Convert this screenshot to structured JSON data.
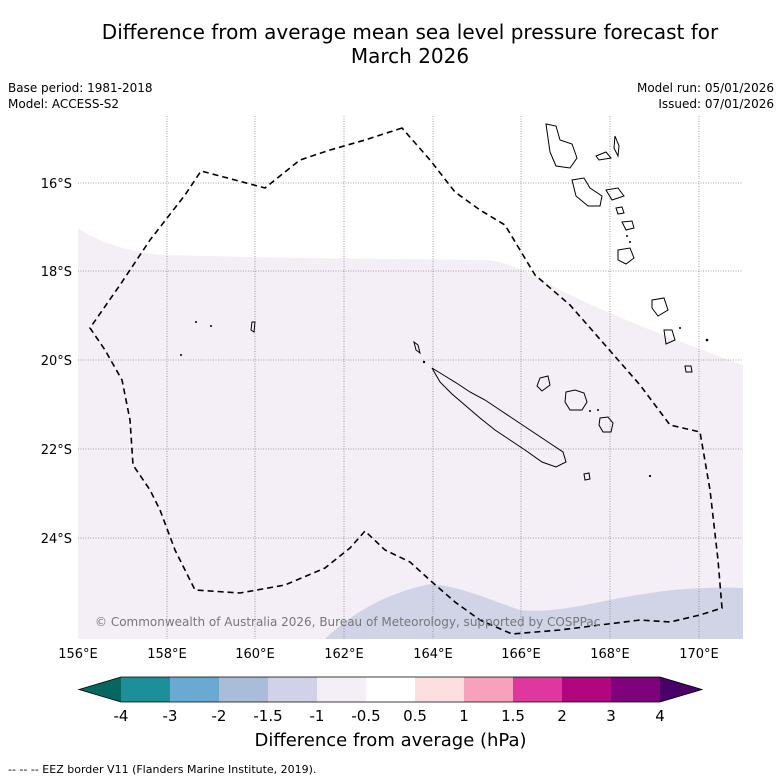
{
  "title": {
    "line1": "Difference from average mean sea level pressure forecast for",
    "line2": "March 2026"
  },
  "meta": {
    "base_period": "Base period: 1981-2018",
    "model": "Model: ACCESS-S2",
    "model_run": "Model run: 05/01/2026",
    "issued": "Issued: 07/01/2026"
  },
  "map": {
    "lon_labels": [
      "156°E",
      "158°E",
      "160°E",
      "162°E",
      "164°E",
      "166°E",
      "168°E",
      "170°E"
    ],
    "lat_labels": [
      "16°S",
      "18°S",
      "20°S",
      "22°S",
      "24°S"
    ],
    "copyright": "© Commonwealth of Australia 2026, Bureau of Meteorology, supported by COSPPac",
    "colors": {
      "light_purple": "#f4eef6",
      "light_blue": "#d1d3e7",
      "coast": "#000000"
    }
  },
  "colorbar": {
    "ticks": [
      "-4",
      "-3",
      "-2",
      "-1.5",
      "-1",
      "-0.5",
      "0.5",
      "1",
      "1.5",
      "2",
      "3",
      "4"
    ],
    "colors": [
      "#05675f",
      "#1b9098",
      "#69a9d2",
      "#a9bcd8",
      "#d1d2e7",
      "#f4eff6",
      "#ffffff",
      "#fedfe0",
      "#f8a1bd",
      "#de389e",
      "#b0077e",
      "#7f017c",
      "#490069"
    ],
    "label": "Difference from average (hPa)"
  },
  "footer": "--  --  -- EEZ border V11 (Flanders Marine Institute, 2019)."
}
